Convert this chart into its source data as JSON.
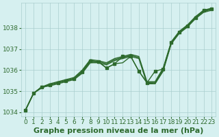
{
  "x": [
    0,
    1,
    2,
    3,
    4,
    5,
    6,
    7,
    8,
    9,
    10,
    11,
    12,
    13,
    14,
    15,
    16,
    17,
    18,
    19,
    20,
    21,
    22,
    23
  ],
  "lines": [
    [
      1034.1,
      1034.9,
      1035.2,
      1035.3,
      1035.4,
      1035.5,
      1035.6,
      1035.9,
      1036.4,
      1036.4,
      1036.3,
      1036.5,
      1036.6,
      1036.7,
      1036.6,
      1035.4,
      1035.4,
      1036.0,
      1037.3,
      1037.8,
      1038.1,
      1038.5,
      1038.8,
      1038.9
    ],
    [
      1034.1,
      1034.9,
      1035.2,
      1035.35,
      1035.45,
      1035.55,
      1035.65,
      1036.0,
      1036.5,
      1036.45,
      1036.35,
      1036.55,
      1036.65,
      1036.75,
      1036.65,
      1035.45,
      1035.45,
      1036.1,
      1037.35,
      1037.85,
      1038.15,
      1038.55,
      1038.85,
      1038.95
    ],
    [
      1034.1,
      1034.9,
      1035.2,
      1035.25,
      1035.35,
      1035.45,
      1035.55,
      1035.85,
      1036.35,
      1036.35,
      1036.25,
      1036.45,
      1036.55,
      1036.65,
      1036.55,
      1035.35,
      1035.35,
      1035.95,
      1037.25,
      1037.75,
      1038.05,
      1038.45,
      1038.75,
      1038.85
    ],
    [
      1034.1,
      1034.9,
      1035.15,
      1035.3,
      1035.4,
      1035.5,
      1035.6,
      1035.95,
      1036.45,
      1036.4,
      1036.1,
      1036.3,
      1036.35,
      1036.65,
      1035.95,
      1035.4,
      1035.35,
      1036.05,
      1037.3,
      1037.8,
      1038.1,
      1038.5,
      1038.8,
      1038.9
    ]
  ],
  "main_line": [
    1034.1,
    1034.9,
    1035.2,
    1035.3,
    1035.4,
    1035.5,
    1035.6,
    1035.9,
    1036.45,
    1036.4,
    1036.1,
    1036.3,
    1036.65,
    1036.65,
    1035.95,
    1035.4,
    1035.95,
    1036.05,
    1037.3,
    1037.8,
    1038.1,
    1038.5,
    1038.85,
    1038.9
  ],
  "line_color": "#2d6a2d",
  "marker_color": "#2d6a2d",
  "bg_color": "#d6f0f0",
  "grid_color": "#aacece",
  "axis_color": "#2d6a2d",
  "xlabel": "Graphe pression niveau de la mer (hPa)",
  "ylim": [
    1033.8,
    1039.2
  ],
  "xlim": [
    -0.5,
    23.5
  ],
  "yticks": [
    1034,
    1035,
    1036,
    1037,
    1038
  ],
  "xticks": [
    0,
    1,
    2,
    3,
    4,
    5,
    6,
    7,
    8,
    9,
    10,
    11,
    12,
    13,
    14,
    15,
    16,
    17,
    18,
    19,
    20,
    21,
    22,
    23
  ],
  "xlabel_fontsize": 8,
  "tick_fontsize": 6.5,
  "marker_size": 3,
  "line_width": 1.0
}
